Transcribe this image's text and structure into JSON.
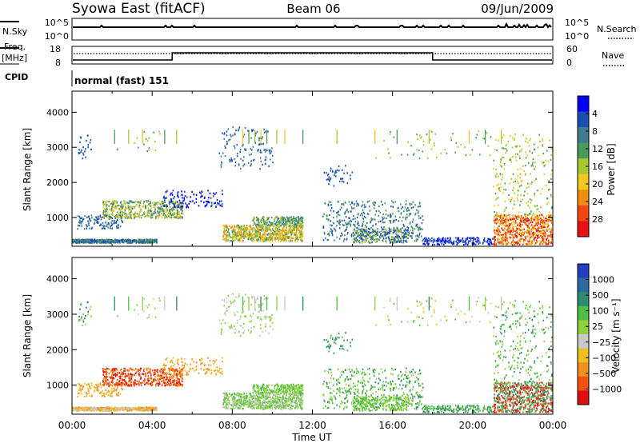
{
  "header": {
    "station": "Syowa East (fitACF)",
    "beam": "Beam 06",
    "date": "09/Jun/2009"
  },
  "nsky_panel": {
    "left_label": "N.Sky",
    "left_top_tick": "10^5",
    "left_bottom_tick": "10^0",
    "right_top_tick": "10^5",
    "right_bottom_tick": "10^0",
    "right_label": "N.Search"
  },
  "freq_panel": {
    "left_label_line1": "Freq.",
    "left_label_line2": "[MHz]",
    "left_top_tick": "18",
    "left_bottom_tick": "8",
    "right_top_tick": "60",
    "right_bottom_tick": "0",
    "right_label": "Nave"
  },
  "cpid_panel": {
    "label": "CPID",
    "program": "normal (fast) 151"
  },
  "chart_data": [
    {
      "type": "heatmap",
      "name": "power",
      "ylabel": "Slant Range [km]",
      "yticks": [
        "1000",
        "2000",
        "3000",
        "4000"
      ],
      "ytick_values": [
        1000,
        2000,
        3000,
        4000
      ],
      "ylim": [
        180,
        4600
      ],
      "xlim": [
        0,
        24
      ],
      "colorbar": {
        "label": "Power [dB]",
        "ticks": [
          "4",
          "8",
          "12",
          "16",
          "20",
          "24",
          "28"
        ],
        "colors": [
          "#0000ff",
          "#1b4fb4",
          "#3f7b8a",
          "#4a9a5c",
          "#a8c832",
          "#f0c820",
          "#f08c10",
          "#f04810",
          "#e81010"
        ]
      }
    },
    {
      "type": "heatmap",
      "name": "velocity",
      "ylabel": "Slant Range [km]",
      "yticks": [
        "1000",
        "2000",
        "3000",
        "4000"
      ],
      "ytick_values": [
        1000,
        2000,
        3000,
        4000
      ],
      "ylim": [
        180,
        4600
      ],
      "xlim": [
        0,
        24
      ],
      "xlabel": "Time UT",
      "xticks": [
        "00:00",
        "04:00",
        "08:00",
        "12:00",
        "16:00",
        "20:00",
        "00:00"
      ],
      "xtick_values": [
        0,
        4,
        8,
        12,
        16,
        20,
        24
      ],
      "colorbar": {
        "label": "Velocity [m s⁻¹]",
        "ticks": [
          "1000",
          "500",
          "100",
          "25",
          "−25",
          "−100",
          "−500",
          "−1000"
        ],
        "colors": [
          "#2040c0",
          "#2a6aa0",
          "#2e8a70",
          "#50c040",
          "#90d040",
          "#c8c8c8",
          "#f0c020",
          "#f09020",
          "#f05010",
          "#e01010"
        ]
      }
    }
  ]
}
